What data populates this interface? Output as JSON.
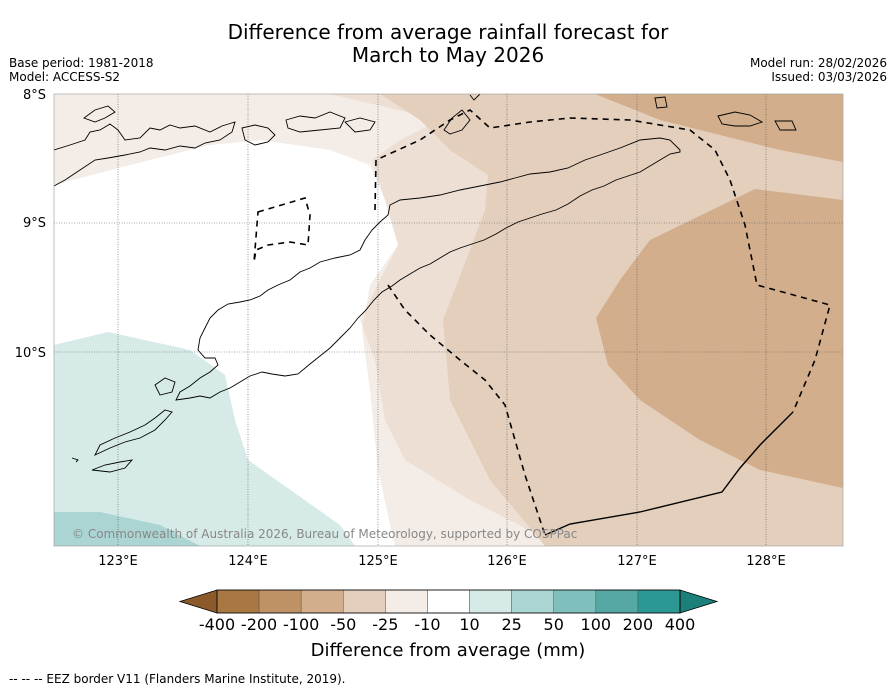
{
  "title_line1": "Difference from average rainfall forecast for",
  "title_line2": "March to May 2026",
  "base_period": "Base period: 1981-2018",
  "model": "Model: ACCESS-S2",
  "model_run": "Model run: 28/02/2026",
  "issued": "Issued: 03/03/2026",
  "copyright": "© Commonwealth of Australia 2026, Bureau of Meteorology, supported by COSPPac",
  "lat_labels": [
    "8°S",
    "9°S",
    "10°S"
  ],
  "lon_labels": [
    "123°E",
    "124°E",
    "125°E",
    "126°E",
    "127°E",
    "128°E"
  ],
  "colorbar": {
    "title": "Difference from average (mm)",
    "tick_labels": [
      "-400",
      "-200",
      "-100",
      "-50",
      "-25",
      "-10",
      "10",
      "25",
      "50",
      "100",
      "200",
      "400"
    ],
    "colors": [
      "#8c5a2a",
      "#a97842",
      "#bf9266",
      "#d2ae8c",
      "#e4cfbc",
      "#f4ede7",
      "#ffffff",
      "#d6eae8",
      "#abd5d2",
      "#7fc0bc",
      "#55a8a4",
      "#2d9893",
      "#1b7f7a"
    ]
  },
  "footnote": "-- -- -- EEZ border V11 (Flanders Marine Institute, 2019)."
}
